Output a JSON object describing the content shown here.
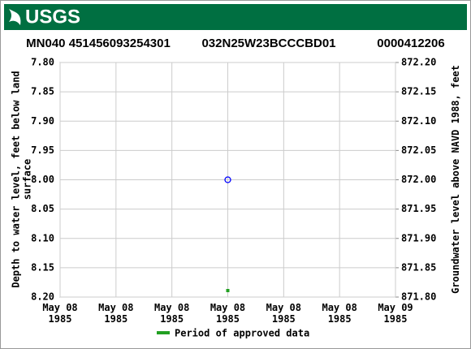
{
  "header": {
    "logo": "USGS"
  },
  "chart_data": {
    "type": "scatter",
    "title": [
      "MN040 451456093254301",
      "032N25W23BCCCBD01",
      "0000412206"
    ],
    "y_label": "Depth to water level, feet below land surface",
    "y2_label": "Groundwater level above NAVD 1988, feet",
    "xlim": [
      0,
      24
    ],
    "xticks": [
      {
        "value": 0,
        "label": "May 08\n1985"
      },
      {
        "value": 4,
        "label": "May 08\n1985"
      },
      {
        "value": 8,
        "label": "May 08\n1985"
      },
      {
        "value": 12,
        "label": "May 08\n1985"
      },
      {
        "value": 16,
        "label": "May 08\n1985"
      },
      {
        "value": 20,
        "label": "May 08\n1985"
      },
      {
        "value": 24,
        "label": "May 09\n1985"
      }
    ],
    "ylim": [
      7.8,
      8.2
    ],
    "yticks": [
      {
        "value": 7.8,
        "label": "7.80"
      },
      7.85,
      {
        "value": 7.9,
        "label": "7.90"
      },
      7.95,
      {
        "value": 8.0,
        "label": "8.00"
      },
      8.05,
      {
        "value": 8.1,
        "label": "8.10"
      },
      8.15,
      {
        "value": 8.2,
        "label": "8.20"
      }
    ],
    "y2lim": [
      872.2,
      871.8
    ],
    "y2ticks": [
      {
        "value": 872.2,
        "label": "872.20"
      },
      872.15,
      {
        "value": 872.1,
        "label": "872.10"
      },
      872.05,
      {
        "value": 872.0,
        "label": "872.00"
      },
      871.95,
      {
        "value": 871.9,
        "label": "871.90"
      },
      871.85,
      {
        "value": 871.8,
        "label": "871.80"
      }
    ],
    "grid": true,
    "series": [
      {
        "name": null,
        "color": "#0000ff",
        "x": [
          12
        ],
        "values": [
          8.0
        ]
      },
      {
        "name": "Period of approved data",
        "color": "#22a022",
        "x": [
          12
        ]
      }
    ]
  }
}
